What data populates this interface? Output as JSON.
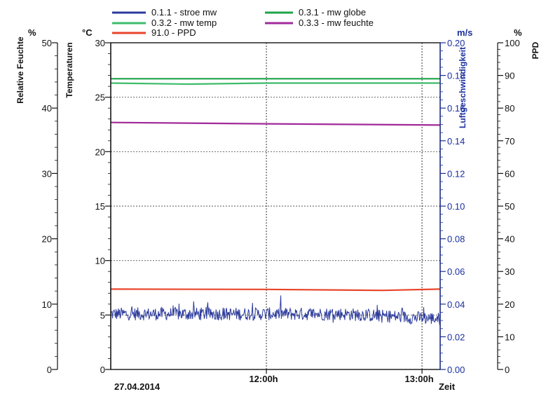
{
  "chart_data": {
    "type": "line",
    "date_label": "27.04.2014",
    "x_axis": {
      "label": "Zeit",
      "range": [
        "11:00h",
        "13:07h"
      ],
      "ticks": [
        {
          "label": "12:00h",
          "value": "12:00h"
        },
        {
          "label": "13:00h",
          "value": "13:00h"
        }
      ],
      "grid": true
    },
    "axes": {
      "rh": {
        "title": "Relative Feuchte",
        "unit": "%",
        "range": [
          0,
          50
        ],
        "major_ticks": [
          0,
          10,
          20,
          30,
          40,
          50
        ]
      },
      "temp": {
        "title": "Temperaturen",
        "unit": "°C",
        "range": [
          0,
          30
        ],
        "major_ticks": [
          0,
          5,
          10,
          15,
          20,
          25,
          30
        ],
        "grid": true
      },
      "speed": {
        "title": "Luftgeschwindigkeit",
        "unit": "m/s",
        "range": [
          0,
          0.2
        ],
        "major_ticks": [
          "0.00",
          "0.02",
          "0.04",
          "0.06",
          "0.08",
          "0.10",
          "0.12",
          "0.14",
          "0.16",
          "0.18",
          "0.20"
        ]
      },
      "ppd": {
        "title": "PPD",
        "unit": "%",
        "range": [
          0,
          100
        ],
        "major_ticks": [
          0,
          10,
          20,
          30,
          40,
          50,
          60,
          70,
          80,
          90,
          100
        ]
      }
    },
    "legend_placement": "top",
    "series": [
      {
        "name": "0.1.1 - stroe mw",
        "axis": "speed",
        "color": "#2b3a9c",
        "mean": 0.034,
        "noise": 0.004,
        "end_mean": 0.031
      },
      {
        "name": "0.3.1 - mw globe",
        "axis": "temp",
        "color": "#1fa34a",
        "x": [
          "11:00h",
          "12:00h",
          "13:07h"
        ],
        "values": [
          26.7,
          26.7,
          26.7
        ]
      },
      {
        "name": "0.3.2 - mw temp",
        "axis": "temp",
        "color": "#3dbb6a",
        "x": [
          "11:00h",
          "11:30h",
          "12:00h",
          "13:07h"
        ],
        "values": [
          26.3,
          26.2,
          26.3,
          26.3
        ]
      },
      {
        "name": "0.3.3 - mw feuchte",
        "axis": "rh",
        "color": "#a12a9a",
        "x": [
          "11:00h",
          "12:00h",
          "13:07h"
        ],
        "values": [
          37.8,
          37.6,
          37.4
        ]
      },
      {
        "name": "91.0 - PPD",
        "axis": "ppd",
        "color": "#e8452b",
        "x": [
          "11:00h",
          "12:00h",
          "12:45h",
          "13:07h"
        ],
        "values": [
          24.6,
          24.5,
          24.2,
          24.6
        ]
      }
    ]
  }
}
